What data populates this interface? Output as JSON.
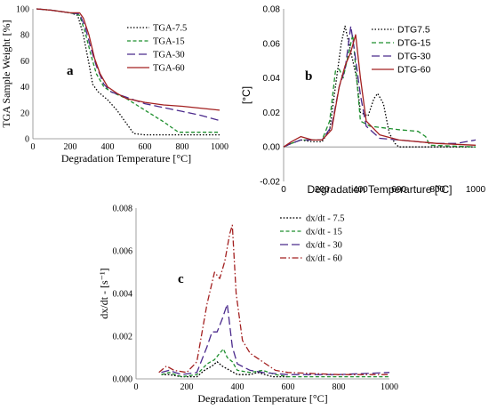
{
  "chart_data": [
    {
      "id": "a",
      "type": "line",
      "panel_label": "a",
      "xlabel": "Degradation Temperature [°C]",
      "ylabel": "TGA Sample Weight [%]",
      "xlim": [
        0,
        1000
      ],
      "ylim": [
        0,
        100
      ],
      "xticks": [
        0,
        200,
        400,
        600,
        800,
        1000
      ],
      "yticks": [
        0,
        20,
        40,
        60,
        80,
        100
      ],
      "legend_position": "top-right",
      "grid": false,
      "series": [
        {
          "name": "TGA-7.5",
          "color": "#000000",
          "dash": "1.5,2",
          "points": [
            [
              20,
              100
            ],
            [
              100,
              99
            ],
            [
              200,
              97
            ],
            [
              240,
              95
            ],
            [
              270,
              80
            ],
            [
              300,
              58
            ],
            [
              320,
              42
            ],
            [
              350,
              36
            ],
            [
              400,
              30
            ],
            [
              450,
              22
            ],
            [
              500,
              12
            ],
            [
              540,
              4
            ],
            [
              600,
              3
            ],
            [
              800,
              3
            ],
            [
              1000,
              3
            ]
          ]
        },
        {
          "name": "TGA-15",
          "color": "#1e8f2e",
          "dash": "4,2.5",
          "points": [
            [
              20,
              100
            ],
            [
              100,
              99
            ],
            [
              200,
              97
            ],
            [
              250,
              95
            ],
            [
              280,
              82
            ],
            [
              310,
              65
            ],
            [
              340,
              50
            ],
            [
              380,
              40
            ],
            [
              420,
              36
            ],
            [
              500,
              31
            ],
            [
              600,
              22
            ],
            [
              700,
              13
            ],
            [
              780,
              5
            ],
            [
              800,
              5
            ],
            [
              1000,
              5
            ]
          ]
        },
        {
          "name": "TGA-30",
          "color": "#4b2a8c",
          "dash": "9,4",
          "points": [
            [
              20,
              100
            ],
            [
              100,
              99
            ],
            [
              200,
              97
            ],
            [
              250,
              96
            ],
            [
              280,
              86
            ],
            [
              310,
              70
            ],
            [
              340,
              56
            ],
            [
              380,
              42
            ],
            [
              420,
              36
            ],
            [
              500,
              32
            ],
            [
              600,
              27
            ],
            [
              700,
              24
            ],
            [
              800,
              21
            ],
            [
              900,
              18
            ],
            [
              1000,
              14
            ]
          ]
        },
        {
          "name": "TGA-60",
          "color": "#a32020",
          "dash": "",
          "points": [
            [
              20,
              100
            ],
            [
              100,
              99
            ],
            [
              200,
              97
            ],
            [
              250,
              97
            ],
            [
              270,
              93
            ],
            [
              300,
              80
            ],
            [
              330,
              62
            ],
            [
              360,
              50
            ],
            [
              400,
              40
            ],
            [
              450,
              35
            ],
            [
              500,
              31
            ],
            [
              600,
              28
            ],
            [
              700,
              26
            ],
            [
              800,
              25
            ],
            [
              1000,
              22
            ]
          ]
        }
      ]
    },
    {
      "id": "b",
      "type": "line",
      "panel_label": "b",
      "xlabel": "Degradation Temperarture [ºC]",
      "ylabel": "[°C]",
      "xlim": [
        0,
        1000
      ],
      "ylim": [
        -0.02,
        0.08
      ],
      "xticks": [
        0,
        200,
        400,
        600,
        800,
        1000
      ],
      "yticks": [
        -0.02,
        0.0,
        0.02,
        0.04,
        0.06,
        0.08
      ],
      "ytick_labels": [
        "-0.02",
        "0.00",
        "0.02",
        "0.04",
        "0.06",
        "0.08"
      ],
      "legend_position": "top-right",
      "grid": false,
      "series": [
        {
          "name": "DTG7.5",
          "color": "#000000",
          "dash": "1.5,2",
          "points": [
            [
              0,
              0
            ],
            [
              40,
              0.002
            ],
            [
              90,
              0.004
            ],
            [
              150,
              0.003
            ],
            [
              200,
              0.003
            ],
            [
              240,
              0.01
            ],
            [
              270,
              0.035
            ],
            [
              300,
              0.06
            ],
            [
              320,
              0.07
            ],
            [
              340,
              0.06
            ],
            [
              360,
              0.05
            ],
            [
              380,
              0.04
            ],
            [
              400,
              0.02
            ],
            [
              440,
              0.018
            ],
            [
              470,
              0.028
            ],
            [
              490,
              0.031
            ],
            [
              520,
              0.025
            ],
            [
              550,
              0.008
            ],
            [
              580,
              0.002
            ],
            [
              600,
              0
            ],
            [
              1000,
              0
            ]
          ]
        },
        {
          "name": "DTG-15",
          "color": "#1e8f2e",
          "dash": "5,3",
          "points": [
            [
              0,
              0
            ],
            [
              40,
              0.002
            ],
            [
              90,
              0.004
            ],
            [
              150,
              0.004
            ],
            [
              200,
              0.004
            ],
            [
              240,
              0.015
            ],
            [
              270,
              0.044
            ],
            [
              290,
              0.045
            ],
            [
              310,
              0.04
            ],
            [
              340,
              0.055
            ],
            [
              360,
              0.065
            ],
            [
              380,
              0.04
            ],
            [
              400,
              0.015
            ],
            [
              450,
              0.012
            ],
            [
              600,
              0.01
            ],
            [
              700,
              0.009
            ],
            [
              740,
              0.006
            ],
            [
              760,
              0.001
            ],
            [
              1000,
              0
            ]
          ]
        },
        {
          "name": "DTG-30",
          "color": "#4b2a8c",
          "dash": "9,4",
          "points": [
            [
              0,
              0
            ],
            [
              40,
              0.002
            ],
            [
              90,
              0.004
            ],
            [
              150,
              0.004
            ],
            [
              200,
              0.004
            ],
            [
              250,
              0.012
            ],
            [
              290,
              0.035
            ],
            [
              320,
              0.045
            ],
            [
              350,
              0.07
            ],
            [
              370,
              0.055
            ],
            [
              400,
              0.03
            ],
            [
              430,
              0.012
            ],
            [
              500,
              0.005
            ],
            [
              600,
              0.004
            ],
            [
              800,
              0.002
            ],
            [
              900,
              0.002
            ],
            [
              1000,
              0.004
            ]
          ]
        },
        {
          "name": "DTG-60",
          "color": "#a32020",
          "dash": "",
          "points": [
            [
              0,
              0
            ],
            [
              40,
              0.003
            ],
            [
              90,
              0.006
            ],
            [
              150,
              0.004
            ],
            [
              200,
              0.004
            ],
            [
              250,
              0.01
            ],
            [
              290,
              0.035
            ],
            [
              320,
              0.047
            ],
            [
              350,
              0.055
            ],
            [
              375,
              0.065
            ],
            [
              400,
              0.04
            ],
            [
              430,
              0.015
            ],
            [
              500,
              0.007
            ],
            [
              600,
              0.004
            ],
            [
              800,
              0.002
            ],
            [
              1000,
              0.001
            ]
          ]
        }
      ]
    },
    {
      "id": "c",
      "type": "line",
      "panel_label": "c",
      "xlabel": "Degradation Temperature [°C]",
      "ylabel": "dx/dt - [s⁻¹]",
      "xlim": [
        0,
        1000
      ],
      "ylim": [
        0,
        0.008
      ],
      "xticks": [
        0,
        200,
        400,
        600,
        800,
        1000
      ],
      "yticks": [
        0,
        0.002,
        0.004,
        0.006,
        0.008
      ],
      "ytick_labels": [
        "0.000",
        "0.002",
        "0.004",
        "0.006",
        "0.008"
      ],
      "legend_position": "top-right",
      "grid": false,
      "series": [
        {
          "name": "dx/dt - 7.5",
          "color": "#000000",
          "dash": "1.8,1.8",
          "points": [
            [
              100,
              0.0002
            ],
            [
              130,
              0.0002
            ],
            [
              180,
              0.0001
            ],
            [
              240,
              0.0001
            ],
            [
              270,
              0.0004
            ],
            [
              300,
              0.0006
            ],
            [
              320,
              0.0008
            ],
            [
              340,
              0.0006
            ],
            [
              370,
              0.0004
            ],
            [
              400,
              0.0002
            ],
            [
              450,
              0.0002
            ],
            [
              480,
              0.0003
            ],
            [
              510,
              0.0002
            ],
            [
              540,
              0.0001
            ],
            [
              600,
              0.0001
            ]
          ]
        },
        {
          "name": "dx/dt - 15",
          "color": "#1e8f2e",
          "dash": "4,2.5",
          "points": [
            [
              100,
              0.0002
            ],
            [
              130,
              0.0003
            ],
            [
              180,
              0.0001
            ],
            [
              240,
              0.0002
            ],
            [
              280,
              0.0007
            ],
            [
              310,
              0.0009
            ],
            [
              330,
              0.0012
            ],
            [
              345,
              0.0014
            ],
            [
              360,
              0.001
            ],
            [
              380,
              0.0008
            ],
            [
              400,
              0.0004
            ],
            [
              450,
              0.0003
            ],
            [
              500,
              0.0004
            ],
            [
              550,
              0.0002
            ],
            [
              600,
              0.0001
            ],
            [
              1000,
              0.0001
            ]
          ]
        },
        {
          "name": "dx/dt - 30",
          "color": "#4b2a8c",
          "dash": "9,4",
          "points": [
            [
              100,
              0.0003
            ],
            [
              130,
              0.0004
            ],
            [
              180,
              0.0002
            ],
            [
              240,
              0.0003
            ],
            [
              280,
              0.0015
            ],
            [
              300,
              0.0022
            ],
            [
              320,
              0.0022
            ],
            [
              340,
              0.0028
            ],
            [
              360,
              0.0035
            ],
            [
              380,
              0.0015
            ],
            [
              400,
              0.0007
            ],
            [
              450,
              0.0004
            ],
            [
              500,
              0.0003
            ],
            [
              600,
              0.0002
            ],
            [
              800,
              0.0002
            ],
            [
              1000,
              0.0003
            ]
          ]
        },
        {
          "name": "dx/dt - 60",
          "color": "#a32020",
          "dash": "7,2.5,1.5,2.5",
          "points": [
            [
              90,
              0.0003
            ],
            [
              120,
              0.0006
            ],
            [
              150,
              0.0004
            ],
            [
              200,
              0.0003
            ],
            [
              240,
              0.0008
            ],
            [
              280,
              0.0035
            ],
            [
              310,
              0.005
            ],
            [
              330,
              0.0047
            ],
            [
              350,
              0.0055
            ],
            [
              370,
              0.0068
            ],
            [
              380,
              0.0072
            ],
            [
              395,
              0.004
            ],
            [
              420,
              0.0018
            ],
            [
              450,
              0.0012
            ],
            [
              500,
              0.0008
            ],
            [
              550,
              0.0004
            ],
            [
              600,
              0.0003
            ],
            [
              800,
              0.0002
            ],
            [
              1000,
              0.0002
            ]
          ]
        }
      ]
    }
  ]
}
